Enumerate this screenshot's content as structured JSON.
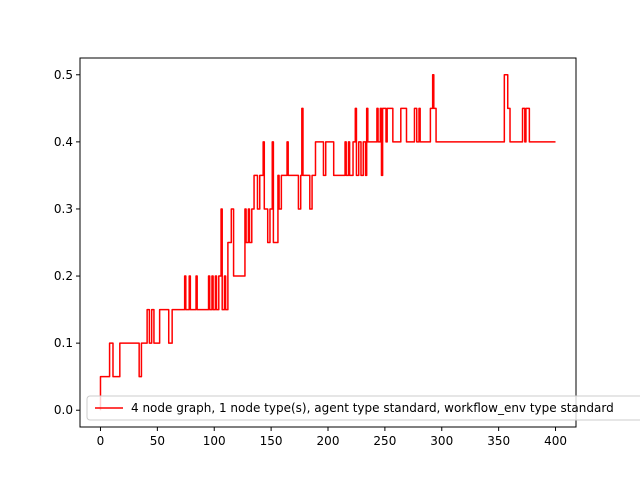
{
  "chart_data": {
    "type": "line",
    "title": "",
    "xlabel": "",
    "ylabel": "",
    "xlim": [
      -18,
      418
    ],
    "ylim": [
      -0.025,
      0.525
    ],
    "grid": false,
    "legend_placement": "lower-left",
    "xticks": [
      0,
      50,
      100,
      150,
      200,
      250,
      300,
      350,
      400
    ],
    "yticks": [
      0.0,
      0.1,
      0.2,
      0.3,
      0.4,
      0.5
    ],
    "xtick_labels": [
      "0",
      "50",
      "100",
      "150",
      "200",
      "250",
      "300",
      "350",
      "400"
    ],
    "ytick_labels": [
      "0.0",
      "0.1",
      "0.2",
      "0.3",
      "0.4",
      "0.5"
    ],
    "series": [
      {
        "name": "4 node graph, 1 node type(s), agent type standard, workflow_env type standard",
        "color": "#ff0000",
        "points": [
          [
            0,
            0.0
          ],
          [
            0,
            0.05
          ],
          [
            5,
            0.05
          ],
          [
            8,
            0.05
          ],
          [
            8,
            0.1
          ],
          [
            11,
            0.1
          ],
          [
            11,
            0.05
          ],
          [
            17,
            0.05
          ],
          [
            17,
            0.1
          ],
          [
            34,
            0.1
          ],
          [
            34,
            0.05
          ],
          [
            36,
            0.05
          ],
          [
            36,
            0.1
          ],
          [
            41,
            0.1
          ],
          [
            41,
            0.15
          ],
          [
            43,
            0.15
          ],
          [
            43,
            0.1
          ],
          [
            45,
            0.1
          ],
          [
            45,
            0.15
          ],
          [
            47,
            0.15
          ],
          [
            47,
            0.1
          ],
          [
            52,
            0.1
          ],
          [
            52,
            0.15
          ],
          [
            60,
            0.15
          ],
          [
            60,
            0.1
          ],
          [
            63,
            0.1
          ],
          [
            63,
            0.15
          ],
          [
            74,
            0.15
          ],
          [
            74,
            0.2
          ],
          [
            75,
            0.2
          ],
          [
            75,
            0.15
          ],
          [
            78,
            0.15
          ],
          [
            78,
            0.2
          ],
          [
            79,
            0.2
          ],
          [
            79,
            0.15
          ],
          [
            84,
            0.15
          ],
          [
            84,
            0.2
          ],
          [
            85,
            0.2
          ],
          [
            85,
            0.15
          ],
          [
            95,
            0.15
          ],
          [
            95,
            0.2
          ],
          [
            96,
            0.2
          ],
          [
            96,
            0.15
          ],
          [
            98,
            0.15
          ],
          [
            98,
            0.2
          ],
          [
            99,
            0.2
          ],
          [
            99,
            0.15
          ],
          [
            101,
            0.15
          ],
          [
            101,
            0.2
          ],
          [
            102,
            0.2
          ],
          [
            102,
            0.15
          ],
          [
            104,
            0.15
          ],
          [
            104,
            0.2
          ],
          [
            106,
            0.2
          ],
          [
            106,
            0.3
          ],
          [
            107,
            0.3
          ],
          [
            107,
            0.15
          ],
          [
            109,
            0.15
          ],
          [
            109,
            0.2
          ],
          [
            110,
            0.2
          ],
          [
            110,
            0.15
          ],
          [
            112,
            0.15
          ],
          [
            112,
            0.25
          ],
          [
            115,
            0.25
          ],
          [
            115,
            0.3
          ],
          [
            117,
            0.3
          ],
          [
            117,
            0.2
          ],
          [
            127,
            0.2
          ],
          [
            127,
            0.3
          ],
          [
            128,
            0.3
          ],
          [
            128,
            0.25
          ],
          [
            130,
            0.25
          ],
          [
            130,
            0.3
          ],
          [
            131,
            0.3
          ],
          [
            131,
            0.25
          ],
          [
            133,
            0.25
          ],
          [
            133,
            0.3
          ],
          [
            135,
            0.3
          ],
          [
            135,
            0.35
          ],
          [
            138,
            0.35
          ],
          [
            138,
            0.3
          ],
          [
            140,
            0.3
          ],
          [
            140,
            0.35
          ],
          [
            143,
            0.35
          ],
          [
            143,
            0.4
          ],
          [
            144,
            0.4
          ],
          [
            144,
            0.3
          ],
          [
            147,
            0.3
          ],
          [
            147,
            0.25
          ],
          [
            149,
            0.25
          ],
          [
            149,
            0.3
          ],
          [
            151,
            0.3
          ],
          [
            151,
            0.4
          ],
          [
            152,
            0.4
          ],
          [
            152,
            0.25
          ],
          [
            156,
            0.25
          ],
          [
            156,
            0.35
          ],
          [
            157,
            0.35
          ],
          [
            157,
            0.3
          ],
          [
            159,
            0.3
          ],
          [
            159,
            0.35
          ],
          [
            164,
            0.35
          ],
          [
            164,
            0.4
          ],
          [
            165,
            0.4
          ],
          [
            165,
            0.35
          ],
          [
            174,
            0.35
          ],
          [
            174,
            0.3
          ],
          [
            176,
            0.3
          ],
          [
            176,
            0.35
          ],
          [
            177,
            0.35
          ],
          [
            177,
            0.45
          ],
          [
            178,
            0.45
          ],
          [
            178,
            0.35
          ],
          [
            184,
            0.35
          ],
          [
            184,
            0.3
          ],
          [
            186,
            0.3
          ],
          [
            186,
            0.35
          ],
          [
            189,
            0.35
          ],
          [
            189,
            0.4
          ],
          [
            196,
            0.4
          ],
          [
            196,
            0.35
          ],
          [
            198,
            0.35
          ],
          [
            198,
            0.4
          ],
          [
            205,
            0.4
          ],
          [
            205,
            0.35
          ],
          [
            215,
            0.35
          ],
          [
            215,
            0.4
          ],
          [
            216,
            0.4
          ],
          [
            216,
            0.35
          ],
          [
            218,
            0.35
          ],
          [
            218,
            0.4
          ],
          [
            219,
            0.4
          ],
          [
            219,
            0.35
          ],
          [
            222,
            0.35
          ],
          [
            222,
            0.4
          ],
          [
            224,
            0.4
          ],
          [
            224,
            0.45
          ],
          [
            225,
            0.45
          ],
          [
            225,
            0.35
          ],
          [
            227,
            0.35
          ],
          [
            227,
            0.4
          ],
          [
            229,
            0.4
          ],
          [
            229,
            0.35
          ],
          [
            231,
            0.35
          ],
          [
            231,
            0.4
          ],
          [
            233,
            0.4
          ],
          [
            233,
            0.35
          ],
          [
            234,
            0.35
          ],
          [
            234,
            0.45
          ],
          [
            235,
            0.45
          ],
          [
            235,
            0.4
          ],
          [
            243,
            0.4
          ],
          [
            243,
            0.45
          ],
          [
            244,
            0.45
          ],
          [
            244,
            0.4
          ],
          [
            246,
            0.4
          ],
          [
            246,
            0.45
          ],
          [
            247,
            0.45
          ],
          [
            247,
            0.35
          ],
          [
            248,
            0.35
          ],
          [
            248,
            0.45
          ],
          [
            251,
            0.45
          ],
          [
            251,
            0.4
          ],
          [
            252,
            0.4
          ],
          [
            252,
            0.45
          ],
          [
            257,
            0.45
          ],
          [
            257,
            0.4
          ],
          [
            264,
            0.4
          ],
          [
            264,
            0.45
          ],
          [
            269,
            0.45
          ],
          [
            269,
            0.4
          ],
          [
            276,
            0.4
          ],
          [
            276,
            0.45
          ],
          [
            278,
            0.45
          ],
          [
            278,
            0.4
          ],
          [
            280,
            0.4
          ],
          [
            280,
            0.45
          ],
          [
            281,
            0.45
          ],
          [
            281,
            0.4
          ],
          [
            290,
            0.4
          ],
          [
            290,
            0.45
          ],
          [
            292,
            0.45
          ],
          [
            292,
            0.5
          ],
          [
            293,
            0.5
          ],
          [
            293,
            0.45
          ],
          [
            295,
            0.45
          ],
          [
            295,
            0.4
          ],
          [
            355,
            0.4
          ],
          [
            355,
            0.5
          ],
          [
            358,
            0.5
          ],
          [
            358,
            0.45
          ],
          [
            360,
            0.45
          ],
          [
            360,
            0.4
          ],
          [
            371,
            0.4
          ],
          [
            371,
            0.45
          ],
          [
            373,
            0.45
          ],
          [
            373,
            0.4
          ],
          [
            374,
            0.4
          ],
          [
            374,
            0.45
          ],
          [
            377,
            0.45
          ],
          [
            377,
            0.4
          ],
          [
            400,
            0.4
          ]
        ]
      }
    ]
  }
}
